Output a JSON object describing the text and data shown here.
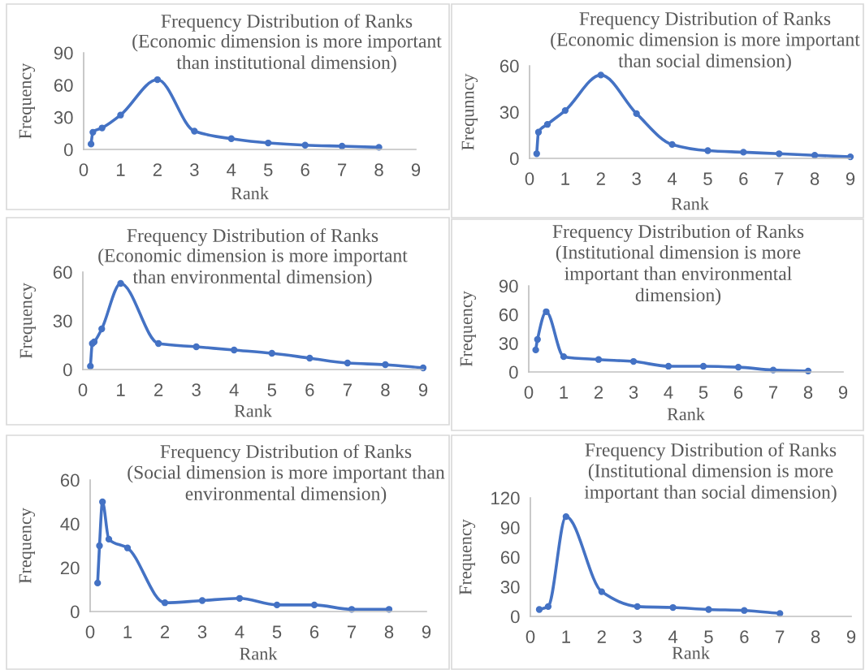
{
  "chart_data": [
    {
      "type": "line",
      "title": "Frequency Distribution of Ranks",
      "subtitle": "(Economic dimension is more important\nthan institutional dimension)",
      "xlabel": "Rank",
      "ylabel": "Frequency",
      "x": [
        0.2,
        0.25,
        0.5,
        1,
        2,
        3,
        4,
        5,
        6,
        7,
        8
      ],
      "values": [
        5,
        16,
        20,
        32,
        65,
        17,
        10,
        6,
        4,
        3,
        2
      ],
      "color": "#4472c4",
      "marker": "circle",
      "line_style": "solid",
      "xlim": [
        0,
        9
      ],
      "xticks": [
        0,
        1,
        2,
        3,
        4,
        5,
        6,
        7,
        8,
        9
      ],
      "ylim": [
        0,
        90
      ],
      "yticks": [
        0,
        30,
        60,
        90
      ]
    },
    {
      "type": "line",
      "title": "Frequency Distribution of Ranks",
      "subtitle": "(Economic dimension is more important\nthan social dimension)",
      "xlabel": "Rank",
      "ylabel": "Frequnncy",
      "x": [
        0.2,
        0.25,
        0.5,
        1,
        2,
        3,
        4,
        5,
        6,
        7,
        8,
        9
      ],
      "values": [
        3,
        17,
        22,
        31,
        54,
        29,
        9,
        5,
        4,
        3,
        2,
        1
      ],
      "color": "#4472c4",
      "marker": "circle",
      "line_style": "solid",
      "xlim": [
        0,
        9
      ],
      "xticks": [
        0,
        1,
        2,
        3,
        4,
        5,
        6,
        7,
        8,
        9
      ],
      "ylim": [
        0,
        60
      ],
      "yticks": [
        0,
        30,
        60
      ]
    },
    {
      "type": "line",
      "title": "Frequency Distribution of Ranks",
      "subtitle": "(Economic dimension is more important\nthan environmental dimension)",
      "xlabel": "Rank",
      "ylabel": "Frequency",
      "x": [
        0.2,
        0.25,
        0.3,
        0.5,
        1,
        2,
        3,
        4,
        5,
        6,
        7,
        8,
        9
      ],
      "values": [
        2,
        16,
        17,
        25,
        53,
        16,
        14,
        12,
        10,
        7,
        4,
        3,
        1
      ],
      "color": "#4472c4",
      "marker": "circle",
      "line_style": "solid",
      "xlim": [
        0,
        9
      ],
      "xticks": [
        0,
        1,
        2,
        3,
        4,
        5,
        6,
        7,
        8,
        9
      ],
      "ylim": [
        0,
        60
      ],
      "yticks": [
        0,
        30,
        60
      ]
    },
    {
      "type": "line",
      "title": "Frequency Distribution of Ranks",
      "subtitle": "(Institutional dimension is more\nimportant than environmental\ndimension)",
      "xlabel": "Rank",
      "ylabel": "Frequency",
      "x": [
        0.2,
        0.25,
        0.5,
        1,
        2,
        3,
        4,
        5,
        6,
        7,
        8
      ],
      "values": [
        23,
        34,
        63,
        16,
        13,
        11,
        6,
        6,
        5,
        2,
        1
      ],
      "color": "#4472c4",
      "marker": "circle",
      "line_style": "solid",
      "xlim": [
        0,
        9
      ],
      "xticks": [
        0,
        1,
        2,
        3,
        4,
        5,
        6,
        7,
        8,
        9
      ],
      "ylim": [
        0,
        90
      ],
      "yticks": [
        0,
        30,
        60,
        90
      ]
    },
    {
      "type": "line",
      "title": "Frequency Distribution of Ranks",
      "subtitle": "(Social dimension is more important than\nenvironmental dimension)",
      "xlabel": "Rank",
      "ylabel": "Frequency",
      "x": [
        0.2,
        0.25,
        0.33,
        0.5,
        1,
        2,
        3,
        4,
        5,
        6,
        7,
        8
      ],
      "values": [
        13,
        30,
        50,
        33,
        29,
        4,
        5,
        6,
        3,
        3,
        1,
        1
      ],
      "color": "#4472c4",
      "marker": "circle",
      "line_style": "solid",
      "xlim": [
        0,
        9
      ],
      "xticks": [
        0,
        1,
        2,
        3,
        4,
        5,
        6,
        7,
        8,
        9
      ],
      "ylim": [
        0,
        60
      ],
      "yticks": [
        0,
        20,
        40,
        60
      ]
    },
    {
      "type": "line",
      "title": "Frequency Distribution of Ranks",
      "subtitle": "(Institutional dimension is more\nimportant than social dimension)",
      "xlabel": "Rank",
      "ylabel": "Frequency",
      "x": [
        0.25,
        0.5,
        1,
        2,
        3,
        4,
        5,
        6,
        7
      ],
      "values": [
        7,
        10,
        101,
        25,
        10,
        9,
        7,
        6,
        3
      ],
      "color": "#4472c4",
      "marker": "circle",
      "line_style": "solid",
      "xlim": [
        0,
        9
      ],
      "xticks": [
        0,
        1,
        2,
        3,
        4,
        5,
        6,
        7,
        8,
        9
      ],
      "ylim": [
        0,
        120
      ],
      "yticks": [
        0,
        30,
        60,
        90,
        120
      ]
    }
  ]
}
